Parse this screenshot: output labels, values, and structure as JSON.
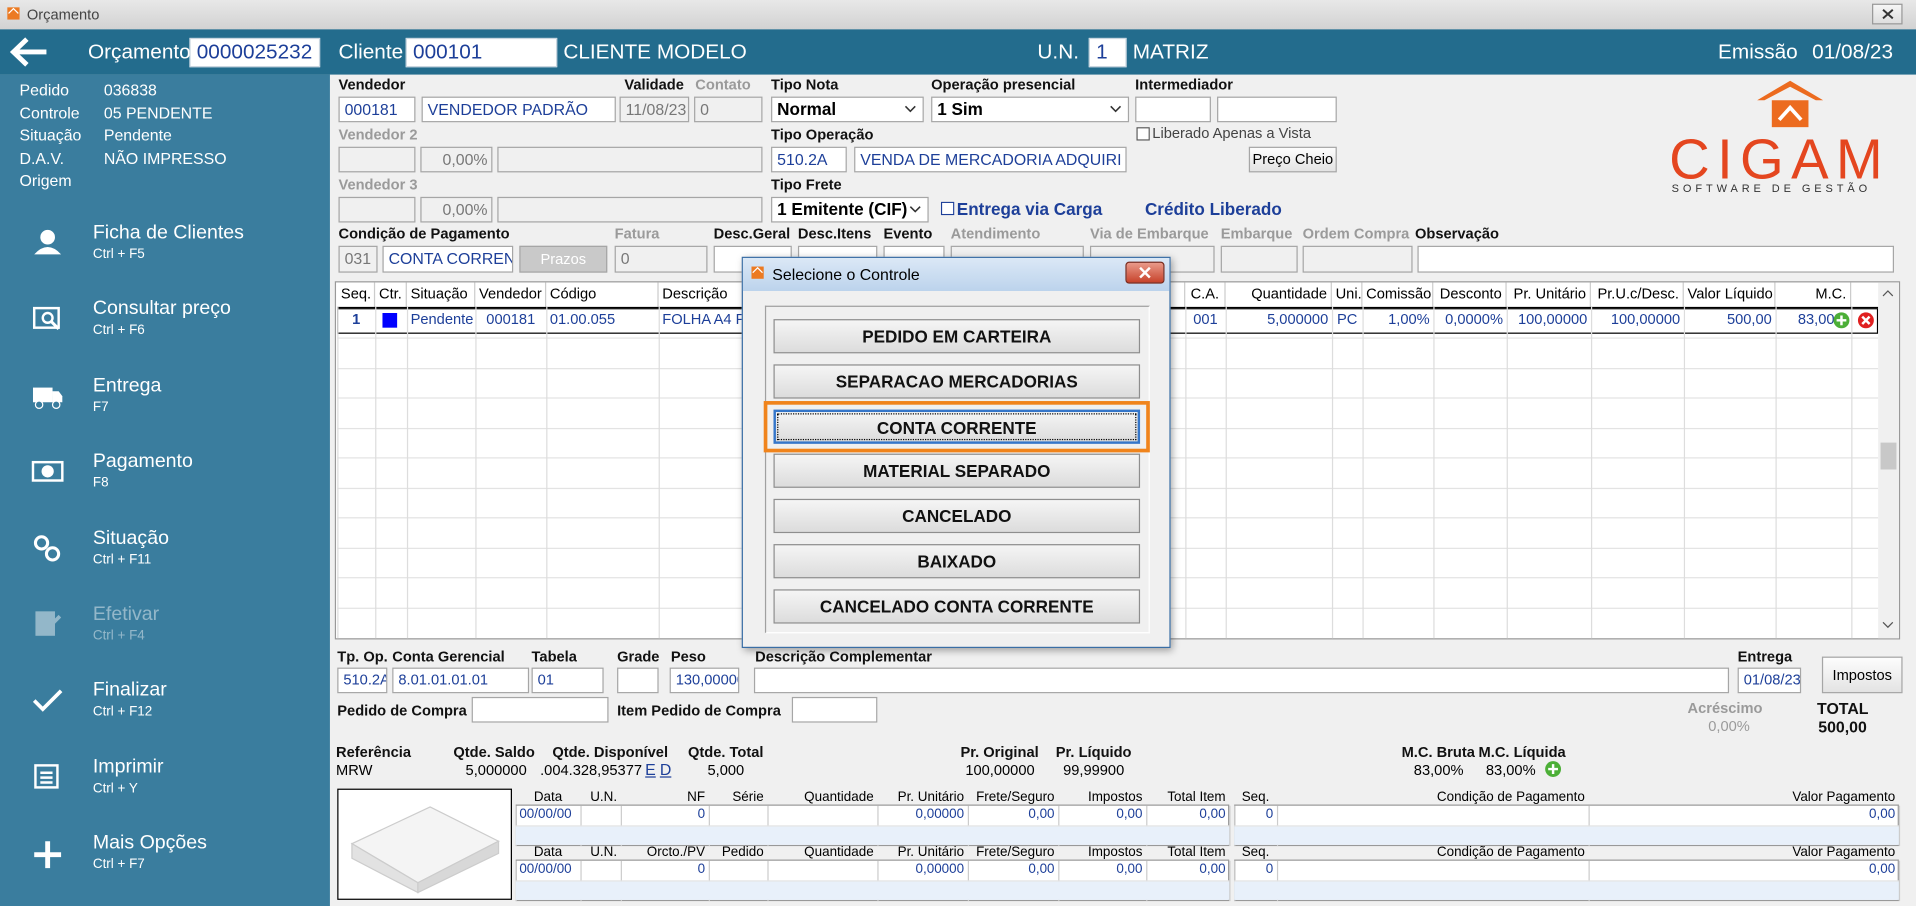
{
  "window": {
    "title": "Orçamento"
  },
  "header": {
    "orcamento_label": "Orçamento",
    "orcamento": "0000025232",
    "cliente_label": "Cliente",
    "cliente_code": "000101",
    "cliente_name": "CLIENTE MODELO",
    "un_label": "U.N.",
    "un_code": "1",
    "un_name": "MATRIZ",
    "emissao_label": "Emissão",
    "emissao": "01/08/23"
  },
  "status": [
    [
      "Pedido",
      "036838"
    ],
    [
      "Controle",
      "05  PENDENTE"
    ],
    [
      "Situação",
      "Pendente"
    ],
    [
      "D.A.V.",
      "NÃO IMPRESSO"
    ],
    [
      "Origem"
    ]
  ],
  "menu": [
    {
      "label": "Ficha de Clientes",
      "shortcut": "Ctrl + F5",
      "enabled": true
    },
    {
      "label": "Consultar preço",
      "shortcut": "Ctrl + F6",
      "enabled": true
    },
    {
      "label": "Entrega",
      "shortcut": "F7",
      "enabled": true
    },
    {
      "label": "Pagamento",
      "shortcut": "F8",
      "enabled": true
    },
    {
      "label": "Situação",
      "shortcut": "Ctrl + F11",
      "enabled": true
    },
    {
      "label": "Efetivar",
      "shortcut": "Ctrl + F4",
      "enabled": false
    },
    {
      "label": "Finalizar",
      "shortcut": "Ctrl + F12",
      "enabled": true
    },
    {
      "label": "Imprimir",
      "shortcut": "Ctrl + Y",
      "enabled": true
    },
    {
      "label": "Mais Opções",
      "shortcut": "Ctrl + F7",
      "enabled": true
    }
  ],
  "logo": {
    "name": "CIGAM",
    "tagline": "SOFTWARE DE GESTÃO"
  },
  "form": {
    "vendedor": {
      "label": "Vendedor",
      "code": "000181",
      "name": "VENDEDOR PADRÃO"
    },
    "validade": {
      "label": "Validade",
      "value": "11/08/23"
    },
    "contato": {
      "label": "Contato",
      "value": "0"
    },
    "tipo_nota": {
      "label": "Tipo Nota",
      "value": "Normal"
    },
    "operacao_presencial": {
      "label": "Operação presencial",
      "value": "1 Sim"
    },
    "intermediador": {
      "label": "Intermediador"
    },
    "vendedor2": {
      "label": "Vendedor 2",
      "percent": "0,00%"
    },
    "tipo_operacao": {
      "label": "Tipo Operação",
      "code": "510.2A",
      "name": "VENDA DE MERCADORIA ADQUIRI"
    },
    "liberado_vista": {
      "label": "Liberado Apenas a Vista",
      "checked": false
    },
    "preco_cheio": "Preço Cheio",
    "vendedor3": {
      "label": "Vendedor 3",
      "percent": "0,00%"
    },
    "tipo_frete": {
      "label": "Tipo Frete",
      "value": "1 Emitente (CIF)"
    },
    "entrega_carga": {
      "label": "Entrega via Carga",
      "checked": false
    },
    "credito": "Crédito Liberado",
    "condicao": {
      "label": "Condição de Pagamento",
      "code": "031",
      "name": "CONTA CORREN"
    },
    "prazos": "Prazos",
    "fatura": {
      "label": "Fatura",
      "value": "0"
    },
    "desc_geral": {
      "label": "Desc.Geral"
    },
    "desc_itens": {
      "label": "Desc.Itens"
    },
    "evento": {
      "label": "Evento"
    },
    "atendimento": {
      "label": "Atendimento"
    },
    "via_embarque": {
      "label": "Via de Embarque"
    },
    "embarque": {
      "label": "Embarque"
    },
    "ordem_compra": {
      "label": "Ordem Compra"
    },
    "observacao": {
      "label": "Observação"
    }
  },
  "items": {
    "columns": [
      "Seq.",
      "Ctr.",
      "Situação",
      "Vendedor",
      "Código",
      "Descrição",
      "C.A.",
      "Quantidade",
      "Uni.",
      "Comissão",
      "Desconto",
      "Pr. Unitário",
      "Pr.U.c/Desc.",
      "Valor Líquido",
      "M.C."
    ],
    "ctr_color": "#0000ff",
    "rows": [
      [
        "1",
        null,
        "Pendente",
        "000181",
        "01.00.055",
        "FOLHA A4 PA",
        "001",
        "5,000000",
        "PC",
        "1,00%",
        "0,0000%",
        "100,00000",
        "100,00000",
        "500,00",
        "83,00%"
      ]
    ]
  },
  "dialog": {
    "title": "Selecione o Controle",
    "options": [
      "PEDIDO EM CARTEIRA",
      "SEPARACAO MERCADORIAS",
      "CONTA CORRENTE",
      "MATERIAL SEPARADO",
      "CANCELADO",
      "BAIXADO",
      "CANCELADO CONTA CORRENTE"
    ],
    "selected": 2
  },
  "bottom": {
    "tp_op": {
      "label": "Tp. Op.",
      "value": "510.2A"
    },
    "conta_gerencial": {
      "label": "Conta Gerencial",
      "value": "8.01.01.01.01"
    },
    "tabela": {
      "label": "Tabela",
      "value": "01"
    },
    "grade": {
      "label": "Grade"
    },
    "peso": {
      "label": "Peso",
      "value": "130,00000"
    },
    "descricao_complementar": {
      "label": "Descrição Complementar"
    },
    "entrega": {
      "label": "Entrega",
      "value": "01/08/23"
    },
    "impostos": "Impostos",
    "pedido_compra": {
      "label": "Pedido de Compra"
    },
    "item_pedido_compra": {
      "label": "Item Pedido de Compra"
    },
    "acrescimo": {
      "label": "Acréscimo",
      "value": "0,00%"
    },
    "total": {
      "label": "TOTAL",
      "value": "500,00"
    },
    "summary": [
      {
        "label": "Referência",
        "value": "MRW"
      },
      {
        "label": "Qtde. Saldo",
        "value": "5,000000"
      },
      {
        "label": "Qtde. Disponível",
        "value": ".004.328,95377"
      },
      {
        "label": "Qtde. Total",
        "value": "5,000"
      },
      {
        "label": "Pr. Original",
        "value": "100,00000"
      },
      {
        "label": "Pr. Líquido",
        "value": "99,99900"
      },
      {
        "label": "M.C. Bruta",
        "value": "83,00%"
      },
      {
        "label": "M.C. Líquida",
        "value": "83,00%"
      }
    ],
    "disponivel_links": [
      "E",
      "D"
    ],
    "invoice_grid": {
      "columns": [
        "Data",
        "U.N.",
        "NF",
        "Série",
        "Quantidade",
        "Pr. Unitário",
        "Frete/Seguro",
        "Impostos",
        "Total Item"
      ],
      "rows": [
        [
          "00/00/00",
          null,
          "0",
          null,
          null,
          "0,00000",
          "0,00",
          "0,00",
          "0,00"
        ]
      ]
    },
    "order_grid": {
      "columns": [
        "Data",
        "U.N.",
        "Orcto./PV",
        "Pedido",
        "Quantidade",
        "Pr. Unitário",
        "Frete/Seguro",
        "Impostos",
        "Total Item"
      ],
      "rows": [
        [
          "00/00/00",
          null,
          "0",
          null,
          null,
          "0,00000",
          "0,00",
          "0,00",
          "0,00"
        ]
      ]
    },
    "payment_grid_1": {
      "columns": [
        "Seq.",
        "Condição de Pagamento",
        "Valor Pagamento"
      ],
      "rows": [
        [
          "0",
          null,
          "0,00"
        ]
      ]
    },
    "payment_grid_2": {
      "columns": [
        "Seq.",
        "Condição de Pagamento",
        "Valor Pagamento"
      ],
      "rows": [
        [
          "0",
          null,
          "0,00"
        ]
      ]
    }
  }
}
